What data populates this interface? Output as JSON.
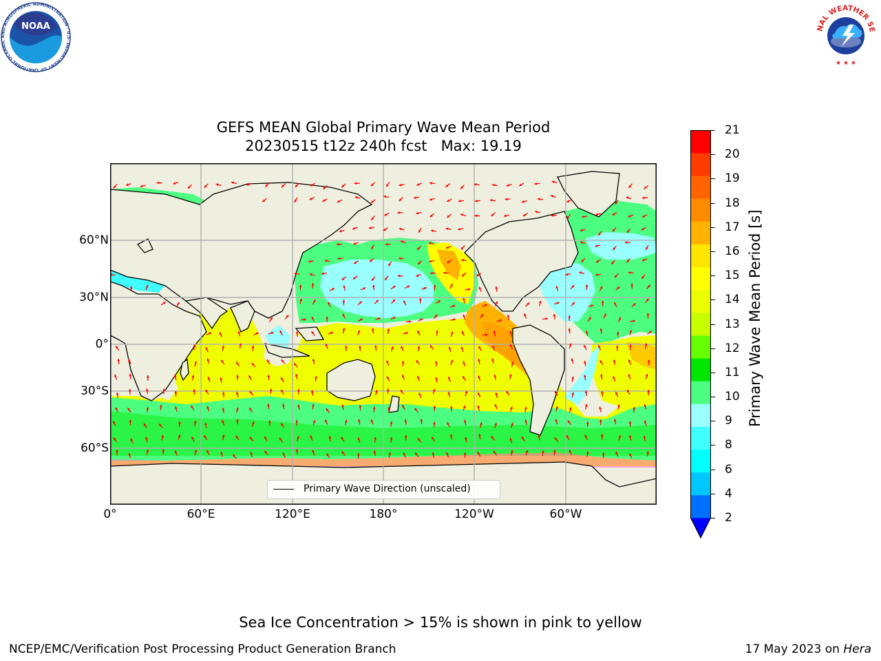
{
  "title_line1": "GEFS MEAN Global Primary Wave Mean Period",
  "title_line2": "20230515 t12z 240h fcst   Max: 19.19",
  "x_ticks": [
    "0°",
    "60°E",
    "120°E",
    "180°",
    "120°W",
    "60°W"
  ],
  "y_ticks": [
    "60°N",
    "30°N",
    "0°",
    "30°S",
    "60°S"
  ],
  "legend_label": "Primary Wave Direction (unscaled)",
  "colorbar": {
    "label": "Primary Wave Mean Period [s]",
    "ticks": [
      "21",
      "20",
      "19",
      "18",
      "17",
      "16",
      "15",
      "14",
      "13",
      "12",
      "11",
      "10",
      "9",
      "8",
      "6",
      "4",
      "2"
    ],
    "colors": [
      "#0000ff",
      "#0070ff",
      "#00c8ff",
      "#00ffff",
      "#40ffff",
      "#99ffff",
      "#4dff80",
      "#00e600",
      "#66ff00",
      "#c8ff00",
      "#ecff00",
      "#ffff00",
      "#ffe600",
      "#ffb300",
      "#ff8c00",
      "#ff6400",
      "#ff3c00",
      "#ff0000"
    ]
  },
  "footnote": "Sea Ice Concentration > 15% is shown in pink to yellow",
  "credit": "NCEP/EMC/Verification Post Processing Product Generation Branch",
  "date_prefix": "17 May 2023 on ",
  "date_host": "Hera",
  "noaa_logo": {
    "icon": "noaa-logo-icon",
    "wordmark": "NOAA",
    "ring_text": "NATIONAL OCEANIC AND ATMOSPHERIC ADMINISTRATION · U.S. DEPARTMENT OF COMMERCE"
  },
  "nws_logo": {
    "icon": "nws-logo-icon",
    "ring_text": "NATIONAL WEATHER SERVICE"
  },
  "map_colors": {
    "land": "#efefdf",
    "gridline": "#b0b0b0",
    "arrow": "#ff0000"
  }
}
